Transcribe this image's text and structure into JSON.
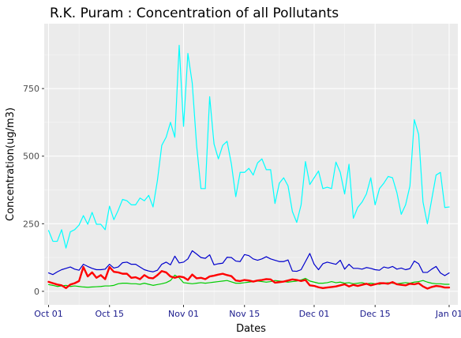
{
  "chart_data": {
    "type": "line",
    "title": "R.K. Puram : Concentration of all Pollutants",
    "xlabel": "Dates",
    "ylabel": "Concentration(ug/m3)",
    "x_start": "2018-09-30",
    "x_end": "2019-01-03",
    "ylim": [
      -50,
      990
    ],
    "yticks": [
      0,
      250,
      500,
      750
    ],
    "xticks": [
      {
        "date": "2018-10-01",
        "label": "Oct 01"
      },
      {
        "date": "2018-10-15",
        "label": "Oct 15"
      },
      {
        "date": "2018-11-01",
        "label": "Nov 01"
      },
      {
        "date": "2018-11-15",
        "label": "Nov 15"
      },
      {
        "date": "2018-12-01",
        "label": "Dec 01"
      },
      {
        "date": "2018-12-15",
        "label": "Dec 15"
      },
      {
        "date": "2019-01-01",
        "label": "Jan 01"
      }
    ],
    "grid": true,
    "background": "#ebebeb",
    "series": [
      {
        "color": "#00ffff",
        "stroke_width": 1.2,
        "values": [
          225,
          185,
          185,
          228,
          160,
          220,
          228,
          245,
          280,
          248,
          292,
          248,
          248,
          228,
          315,
          265,
          300,
          340,
          335,
          320,
          320,
          345,
          335,
          355,
          312,
          410,
          540,
          570,
          625,
          570,
          910,
          610,
          880,
          770,
          540,
          380,
          380,
          720,
          545,
          490,
          540,
          555,
          470,
          350,
          440,
          440,
          455,
          430,
          475,
          490,
          450,
          450,
          325,
          400,
          420,
          390,
          295,
          255,
          320,
          480,
          395,
          420,
          445,
          380,
          385,
          380,
          478,
          440,
          360,
          470,
          270,
          310,
          330,
          360,
          420,
          320,
          380,
          400,
          425,
          420,
          365,
          285,
          320,
          390,
          635,
          580,
          330,
          250,
          340,
          430,
          440,
          310,
          312
        ]
      },
      {
        "color": "#0000cd",
        "stroke_width": 1.2,
        "values": [
          68,
          62,
          72,
          80,
          85,
          90,
          82,
          78,
          100,
          92,
          85,
          80,
          80,
          82,
          100,
          86,
          90,
          106,
          108,
          100,
          100,
          90,
          80,
          75,
          72,
          78,
          100,
          108,
          98,
          130,
          105,
          108,
          120,
          150,
          138,
          125,
          122,
          135,
          98,
          102,
          104,
          126,
          125,
          112,
          110,
          136,
          132,
          120,
          115,
          120,
          128,
          120,
          115,
          110,
          110,
          116,
          75,
          74,
          80,
          110,
          140,
          100,
          80,
          102,
          108,
          104,
          100,
          115,
          82,
          100,
          85,
          85,
          82,
          88,
          85,
          80,
          78,
          90,
          86,
          92,
          82,
          86,
          80,
          84,
          112,
          102,
          70,
          70,
          82,
          92,
          68,
          58,
          68
        ]
      },
      {
        "color": "#00cd00",
        "stroke_width": 1.2,
        "values": [
          25,
          22,
          18,
          20,
          22,
          18,
          20,
          18,
          16,
          15,
          16,
          17,
          18,
          20,
          20,
          22,
          28,
          30,
          30,
          28,
          28,
          26,
          30,
          26,
          22,
          25,
          28,
          32,
          40,
          60,
          50,
          32,
          30,
          28,
          30,
          32,
          30,
          32,
          34,
          36,
          38,
          40,
          35,
          30,
          30,
          32,
          34,
          36,
          38,
          36,
          34,
          36,
          40,
          38,
          36,
          34,
          36,
          38,
          42,
          48,
          38,
          34,
          30,
          30,
          32,
          36,
          32,
          34,
          30,
          32,
          28,
          30,
          32,
          28,
          30,
          28,
          26,
          30,
          32,
          30,
          28,
          30,
          32,
          30,
          34,
          36,
          40,
          34,
          30,
          28,
          28,
          26,
          26
        ]
      },
      {
        "color": "#ff0000",
        "stroke_width": 2.4,
        "values": [
          35,
          30,
          25,
          22,
          12,
          25,
          30,
          38,
          90,
          55,
          70,
          50,
          60,
          45,
          90,
          72,
          70,
          65,
          65,
          50,
          52,
          45,
          60,
          50,
          48,
          60,
          75,
          70,
          55,
          50,
          55,
          52,
          42,
          62,
          48,
          50,
          45,
          55,
          58,
          62,
          65,
          60,
          56,
          40,
          38,
          42,
          40,
          36,
          40,
          42,
          45,
          44,
          32,
          34,
          36,
          40,
          44,
          42,
          38,
          42,
          22,
          20,
          15,
          12,
          14,
          16,
          18,
          22,
          26,
          18,
          24,
          20,
          24,
          28,
          22,
          26,
          30,
          30,
          28,
          34,
          26,
          24,
          22,
          28,
          26,
          30,
          18,
          10,
          16,
          20,
          18,
          14,
          14
        ]
      }
    ]
  }
}
